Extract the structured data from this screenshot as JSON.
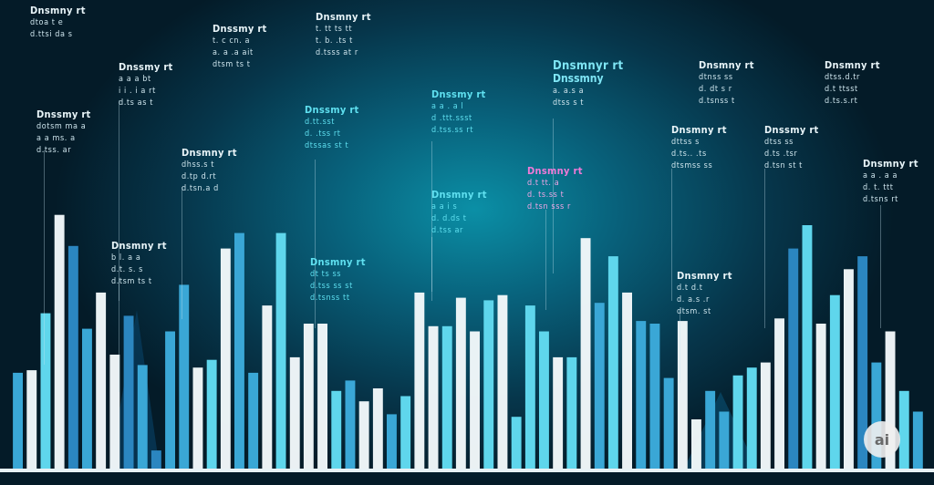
{
  "chart_data": {
    "type": "bar",
    "title": "",
    "xlabel": "",
    "ylabel": "",
    "ylim": [
      0,
      100
    ],
    "grid": false,
    "legend": "none",
    "colors": {
      "white": "#f2f8fa",
      "light_cyan": "#5fd6ec",
      "mid_blue": "#3aa7d6",
      "deep_blue": "#2b86c0",
      "pink": "#f07ad8"
    },
    "values": [
      37,
      38,
      60,
      98,
      86,
      54,
      68,
      44,
      59,
      40,
      7,
      53,
      71,
      39,
      42,
      85,
      91,
      37,
      63,
      91,
      43,
      56,
      56,
      30,
      34,
      26,
      31,
      21,
      28,
      68,
      55,
      55,
      66,
      53,
      65,
      67,
      20,
      63,
      53,
      43,
      43,
      89,
      64,
      82,
      68,
      57,
      56,
      35,
      57,
      19,
      30,
      22,
      36,
      39,
      41,
      58,
      85,
      94,
      56,
      67,
      77,
      82,
      41,
      53,
      30,
      22
    ],
    "bar_colors": [
      "mid_blue",
      "white",
      "light_cyan",
      "white",
      "deep_blue",
      "mid_blue",
      "white",
      "white",
      "deep_blue",
      "mid_blue",
      "deep_blue",
      "mid_blue",
      "mid_blue",
      "white",
      "light_cyan",
      "white",
      "mid_blue",
      "mid_blue",
      "white",
      "light_cyan",
      "white",
      "white",
      "white",
      "light_cyan",
      "mid_blue",
      "white",
      "white",
      "mid_blue",
      "light_cyan",
      "white",
      "white",
      "light_cyan",
      "white",
      "white",
      "light_cyan",
      "white",
      "light_cyan",
      "light_cyan",
      "light_cyan",
      "white",
      "light_cyan",
      "white",
      "mid_blue",
      "light_cyan",
      "white",
      "mid_blue",
      "mid_blue",
      "mid_blue",
      "white",
      "white",
      "mid_blue",
      "mid_blue",
      "light_cyan",
      "light_cyan",
      "white",
      "white",
      "deep_blue",
      "light_cyan",
      "white",
      "light_cyan",
      "white",
      "deep_blue",
      "mid_blue",
      "white",
      "light_cyan",
      "mid_blue"
    ],
    "annotations": [
      {
        "title": "Dnsmny rt",
        "lines": [
          "dtoa t e",
          "d.ttsi da s"
        ],
        "style": "white"
      },
      {
        "title": "Dnssmy rt",
        "lines": [
          "a a a bt",
          "i i . i a rt",
          "d.ts as t"
        ],
        "style": "white"
      },
      {
        "title": "Dnssmy rt",
        "lines": [
          "dotsm ma a",
          "a a ms. a",
          "d.tss.  ar"
        ],
        "style": "white"
      },
      {
        "title": "Dnssmy rt",
        "lines": [
          "t. c cn. a",
          "a. a .a ait",
          "dtsm ts t"
        ],
        "style": "white"
      },
      {
        "title": "Dnsmny rt",
        "lines": [
          "dhss.s t",
          "d.tp d.rt",
          "d.tsn.a d"
        ],
        "style": "white"
      },
      {
        "title": "Dnsmny rt",
        "lines": [
          "b l. a a",
          "d.t. s. s",
          "d.tsm ts t"
        ],
        "style": "white"
      },
      {
        "title": "Dnsmny rt",
        "lines": [
          "t. tt ts tt",
          "t. b. .ts t",
          "d.tsss at r"
        ],
        "style": "white"
      },
      {
        "title": "Dnssmy rt",
        "lines": [
          "d.tt.sst",
          "d. .tss rt",
          "dtssas st t"
        ],
        "style": "cyan"
      },
      {
        "title": "Dnssmy rt",
        "lines": [
          "a a . a l",
          "d .ttt.ssst",
          "d.tss.ss rt"
        ],
        "style": "cyan"
      },
      {
        "title": "Dnsmny rt",
        "lines": [
          "a a i s",
          "d. d.ds t",
          "d.tss ar"
        ],
        "style": "cyan"
      },
      {
        "title": "Dnsmny rt",
        "lines": [
          "dt ts ss",
          "d.tss ss st",
          "d.tsnss tt"
        ],
        "style": "cyan"
      },
      {
        "title": "Dnsmny rt",
        "lines": [
          "d.t tt. a",
          "d. ts.ss t",
          "d.tsn sss r"
        ],
        "style": "pink"
      },
      {
        "title": "Dnsmnyr rt",
        "lines": [
          "Dnssmny",
          "a. a.s a",
          "dtss s t"
        ],
        "style": "big"
      },
      {
        "title": "Dnsmny rt",
        "lines": [
          "dtnss ss",
          "d. dt s r",
          "d.tsnss t"
        ],
        "style": "white"
      },
      {
        "title": "Dnsmny rt",
        "lines": [
          "dttss s",
          "d.ts.. .ts",
          "dtsmss ss"
        ],
        "style": "white"
      },
      {
        "title": "Dnssmy rt",
        "lines": [
          "dtss ss",
          "d.ts .tsr",
          "d.tsn st t"
        ],
        "style": "white"
      },
      {
        "title": "Dnsmny rt",
        "lines": [
          "dtss.d.tr",
          "d.t ttsst",
          "d.ts.s.rt"
        ],
        "style": "white"
      },
      {
        "title": "Dnsmny rt",
        "lines": [
          "a a . a a",
          "d. t. ttt",
          "d.tsns rt"
        ],
        "style": "white"
      },
      {
        "title": "Dnsmny rt",
        "lines": [
          "d.t d.t",
          "d. a.s .r",
          "dtsm. st"
        ],
        "style": "white"
      }
    ]
  },
  "badge": {
    "text": "ai"
  }
}
